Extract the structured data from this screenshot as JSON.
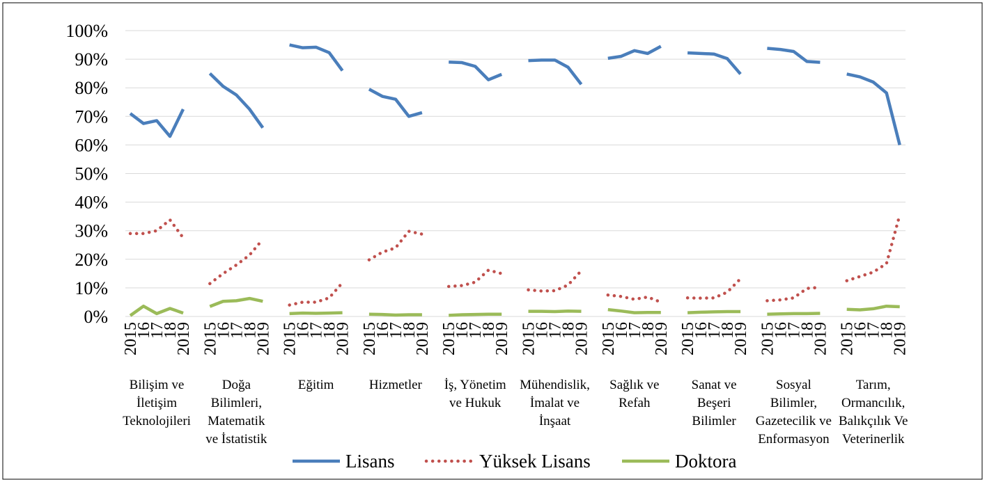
{
  "chart_data": {
    "type": "line",
    "groups": [
      [
        "Bilişim ve",
        "İletişim",
        "Teknolojileri"
      ],
      [
        "Doğa",
        "Bilimleri,",
        "Matematik",
        "ve İstatistik"
      ],
      [
        "Eğitim"
      ],
      [
        "Hizmetler"
      ],
      [
        "İş, Yönetim",
        "ve Hukuk"
      ],
      [
        "Mühendislik,",
        "İmalat ve",
        "İnşaat"
      ],
      [
        "Sağlık ve",
        "Refah"
      ],
      [
        "Sanat ve",
        "Beşeri",
        "Bilimler"
      ],
      [
        "Sosyal",
        "Bilimler,",
        "Gazetecilik ve",
        "Enformasyon"
      ],
      [
        "Tarım,",
        "Ormancılık,",
        "Balıkçılık Ve",
        "Veterinerlik"
      ]
    ],
    "x": [
      "2015",
      "16",
      "17",
      "18",
      "2019"
    ],
    "ylim": [
      0,
      100
    ],
    "yticks": [
      {
        "value": 0,
        "label": "0%"
      },
      {
        "value": 10,
        "label": "10%"
      },
      {
        "value": 20,
        "label": "20%"
      },
      {
        "value": 30,
        "label": "30%"
      },
      {
        "value": 40,
        "label": "40%"
      },
      {
        "value": 50,
        "label": "50%"
      },
      {
        "value": 60,
        "label": "60%"
      },
      {
        "value": 70,
        "label": "70%"
      },
      {
        "value": 80,
        "label": "80%"
      },
      {
        "value": 90,
        "label": "90%"
      },
      {
        "value": 100,
        "label": "100%"
      }
    ],
    "grid": true,
    "legend": "bottom",
    "series": [
      {
        "name": "Lisans",
        "color": "#4a7ebb",
        "style": "solid",
        "values": [
          [
            71,
            67.5,
            68.5,
            63,
            72.5
          ],
          [
            85,
            80.5,
            77.5,
            72.5,
            66
          ],
          [
            95,
            94,
            94.2,
            92.3,
            86
          ],
          [
            79.5,
            77,
            76,
            70,
            71.3
          ],
          [
            89,
            88.8,
            87.5,
            82.8,
            84.7
          ],
          [
            89.5,
            89.7,
            89.7,
            87.2,
            81.2
          ],
          [
            90.3,
            91,
            93,
            92,
            94.5
          ],
          [
            92.2,
            92,
            91.8,
            90.2,
            84.8
          ],
          [
            93.8,
            93.4,
            92.7,
            89.2,
            88.9
          ],
          [
            84.8,
            83.8,
            82,
            78.2,
            60
          ]
        ]
      },
      {
        "name": "Yüksek Lisans",
        "color": "#c0504d",
        "style": "dotted",
        "values": [
          [
            29,
            29,
            30,
            33.8,
            27.5
          ],
          [
            11.5,
            15,
            18,
            21.5,
            27
          ],
          [
            4,
            5,
            5,
            6.5,
            11.8
          ],
          [
            19.8,
            22.5,
            24,
            29.8,
            28.8
          ],
          [
            10.5,
            10.8,
            12,
            16.2,
            15
          ],
          [
            9.3,
            8.9,
            9,
            11,
            16
          ],
          [
            7.5,
            7,
            6,
            6.8,
            5
          ],
          [
            6.5,
            6.4,
            6.5,
            8.5,
            13.2
          ],
          [
            5.5,
            5.8,
            6.5,
            9.8,
            10.2
          ],
          [
            12.5,
            14,
            15.5,
            18.5,
            35.5
          ]
        ]
      },
      {
        "name": "Doktora",
        "color": "#9bbb59",
        "style": "solid",
        "values": [
          [
            0.3,
            3.6,
            1.0,
            2.8,
            1.2
          ],
          [
            3.5,
            5.3,
            5.5,
            6.3,
            5.3
          ],
          [
            1.0,
            1.2,
            1.1,
            1.2,
            1.3
          ],
          [
            0.8,
            0.7,
            0.5,
            0.6,
            0.6
          ],
          [
            0.4,
            0.6,
            0.7,
            0.8,
            0.8
          ],
          [
            1.8,
            1.8,
            1.7,
            1.9,
            1.8
          ],
          [
            2.4,
            1.9,
            1.3,
            1.4,
            1.4
          ],
          [
            1.3,
            1.5,
            1.6,
            1.7,
            1.7
          ],
          [
            0.8,
            0.9,
            1.0,
            1.0,
            1.1
          ],
          [
            2.5,
            2.3,
            2.7,
            3.6,
            3.4
          ]
        ]
      }
    ]
  }
}
